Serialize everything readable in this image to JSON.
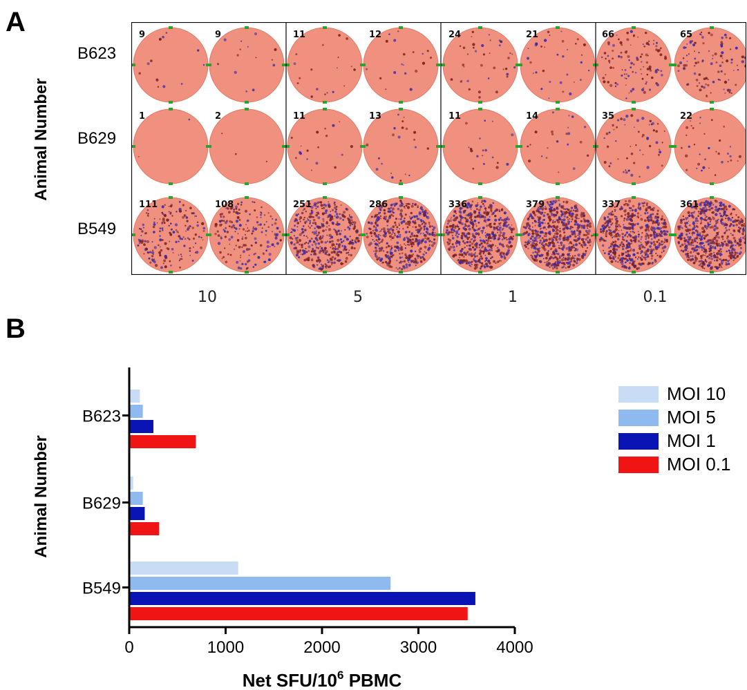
{
  "panel_a": {
    "letter": "A",
    "ylabel": "Animal Number",
    "rows": [
      "B623",
      "B629",
      "B549"
    ],
    "moi_labels": [
      "10",
      "5",
      "1",
      "0.1"
    ],
    "well_counts": [
      [
        "9",
        "9",
        "11",
        "12",
        "24",
        "21",
        "66",
        "65"
      ],
      [
        "1",
        "2",
        "11",
        "13",
        "11",
        "14",
        "35",
        "22"
      ],
      [
        "111",
        "108",
        "251",
        "286",
        "336",
        "379",
        "337",
        "361"
      ]
    ]
  },
  "panel_b": {
    "letter": "B",
    "ylabel": "Animal Number",
    "xlabel_main": "Net SFU/10",
    "xlabel_sup": "6",
    "xlabel_tail": " PBMC"
  },
  "colors": {
    "well": "#f0907e",
    "moi10": "#c8dcf5",
    "moi5": "#8fbaf0",
    "moi1": "#0a14b4",
    "moi01": "#f01414"
  },
  "chart_data": {
    "type": "bar",
    "orientation": "horizontal",
    "categories": [
      "B623",
      "B629",
      "B549"
    ],
    "series": [
      {
        "name": "MOI 10",
        "values": [
          100,
          30,
          1120
        ]
      },
      {
        "name": "MOI 5",
        "values": [
          130,
          130,
          2700
        ]
      },
      {
        "name": "MOI 1",
        "values": [
          240,
          150,
          3580
        ]
      },
      {
        "name": "MOI 0.1",
        "values": [
          680,
          300,
          3500
        ]
      }
    ],
    "xlim": [
      0,
      4000
    ],
    "xticks": [
      "0",
      "1000",
      "2000",
      "3000",
      "4000"
    ],
    "xlabel": "Net SFU/10^6 PBMC",
    "ylabel": "Animal Number",
    "legend": "right"
  }
}
